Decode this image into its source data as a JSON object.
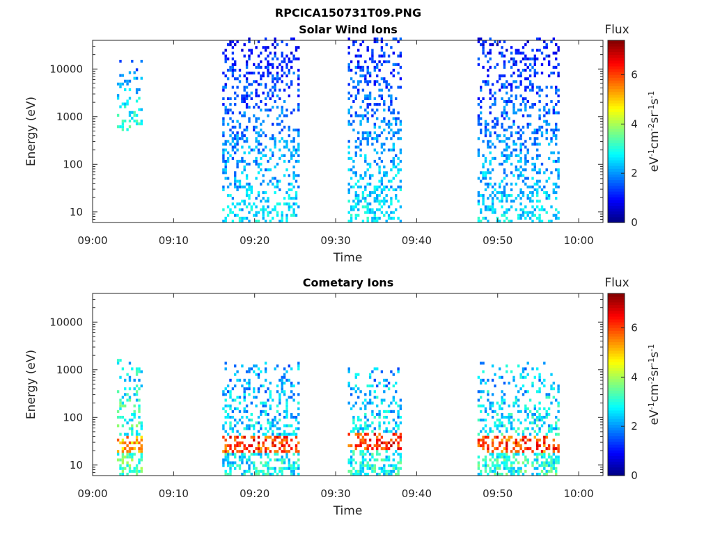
{
  "figure": {
    "title": "RPCICA150731T09.PNG"
  },
  "chart_data": [
    {
      "type": "heatmap",
      "title": "Solar Wind Ions",
      "xlabel": "Time",
      "ylabel": "Energy (eV)",
      "x_ticks": [
        "09:00",
        "09:10",
        "09:20",
        "09:30",
        "09:40",
        "09:50",
        "10:00"
      ],
      "xlim": [
        "09:00",
        "10:03"
      ],
      "y_scale": "log",
      "y_ticks": [
        "10",
        "100",
        "1000",
        "10000"
      ],
      "ylim": [
        6,
        40000
      ],
      "colorbar": {
        "label": "Flux",
        "unit": "eV-1cm-2sr-1s-1",
        "ticks": [
          "0",
          "2",
          "4",
          "6"
        ],
        "range": [
          0,
          7.4
        ],
        "colormap": "jet"
      },
      "bursts": [
        {
          "start": "09:03",
          "end": "09:06",
          "e_min": 500,
          "e_max": 15000,
          "flux": 1.6
        },
        {
          "start": "09:16",
          "end": "09:25.5",
          "e_min": 6,
          "e_max": 40000,
          "flux": 1.0
        },
        {
          "start": "09:31.5",
          "end": "09:38",
          "e_min": 6,
          "e_max": 40000,
          "flux": 1.1
        },
        {
          "start": "09:47.5",
          "end": "09:57.5",
          "e_min": 6,
          "e_max": 40000,
          "flux": 1.0
        }
      ]
    },
    {
      "type": "heatmap",
      "title": "Cometary Ions",
      "xlabel": "Time",
      "ylabel": "Energy (eV)",
      "x_ticks": [
        "09:00",
        "09:10",
        "09:20",
        "09:30",
        "09:40",
        "09:50",
        "10:00"
      ],
      "xlim": [
        "09:00",
        "10:03"
      ],
      "y_scale": "log",
      "y_ticks": [
        "10",
        "100",
        "1000",
        "10000"
      ],
      "ylim": [
        6,
        40000
      ],
      "colorbar": {
        "label": "Flux",
        "unit": "eV-1cm-2sr-1s-1",
        "ticks": [
          "0",
          "2",
          "4",
          "6"
        ],
        "range": [
          0,
          7.4
        ],
        "colormap": "jet"
      },
      "bursts": [
        {
          "start": "09:03",
          "end": "09:06",
          "e_min": 6,
          "e_max": 1500,
          "flux": 2.8,
          "peak_energy": 25,
          "peak_flux": 5.2
        },
        {
          "start": "09:16",
          "end": "09:25.5",
          "e_min": 6,
          "e_max": 1300,
          "flux": 2.2,
          "peak_energy": 25,
          "peak_flux": 6.0
        },
        {
          "start": "09:31.5",
          "end": "09:38",
          "e_min": 6,
          "e_max": 1000,
          "flux": 2.3,
          "peak_energy": 30,
          "peak_flux": 6.2
        },
        {
          "start": "09:47.5",
          "end": "09:57.5",
          "e_min": 6,
          "e_max": 1300,
          "flux": 2.4,
          "peak_energy": 25,
          "peak_flux": 6.0
        }
      ]
    }
  ]
}
